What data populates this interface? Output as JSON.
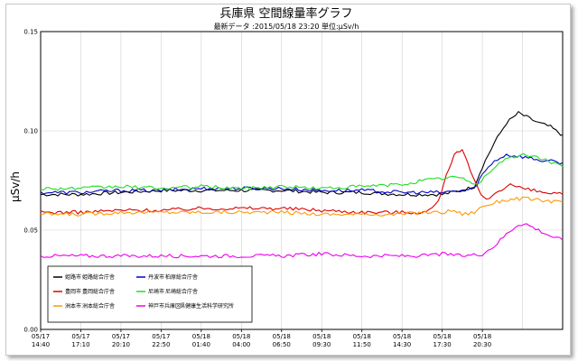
{
  "chart_data": {
    "type": "line",
    "title": "兵庫県 空間線量率グラフ",
    "subtitle": "最新データ :2015/05/18 23:20 単位:μSv/h",
    "ylabel": "μSv/h",
    "ylim": [
      0,
      0.15
    ],
    "yticks": [
      "0.00",
      "0.05",
      "0.10",
      "0.15"
    ],
    "xticks": [
      [
        "05/17",
        "14:40"
      ],
      [
        "05/17",
        "17:10"
      ],
      [
        "05/17",
        "20:10"
      ],
      [
        "05/17",
        "22:50"
      ],
      [
        "05/18",
        "01:40"
      ],
      [
        "05/18",
        "04:00"
      ],
      [
        "05/18",
        "06:50"
      ],
      [
        "05/18",
        "09:30"
      ],
      [
        "05/18",
        "11:50"
      ],
      [
        "05/18",
        "14:30"
      ],
      [
        "05/18",
        "17:30"
      ],
      [
        "05/18",
        "20:30"
      ]
    ],
    "x_count": 13,
    "grid": true,
    "legend_position": "bottom-left",
    "series": [
      {
        "name": "姫路市",
        "label": "姫路総合庁舎",
        "color": "#000000",
        "points": [
          [
            0,
            0.068
          ],
          [
            1,
            0.068
          ],
          [
            2,
            0.069
          ],
          [
            3,
            0.07
          ],
          [
            4,
            0.07
          ],
          [
            5,
            0.07
          ],
          [
            6,
            0.07
          ],
          [
            7,
            0.069
          ],
          [
            8,
            0.069
          ],
          [
            9,
            0.068
          ],
          [
            10,
            0.068
          ],
          [
            10.5,
            0.07
          ],
          [
            10.8,
            0.072
          ],
          [
            11,
            0.082
          ],
          [
            11.3,
            0.094
          ],
          [
            11.6,
            0.104
          ],
          [
            11.9,
            0.109
          ],
          [
            12.1,
            0.107
          ],
          [
            12.4,
            0.104
          ],
          [
            12.7,
            0.102
          ],
          [
            12.9,
            0.099
          ],
          [
            13,
            0.098
          ]
        ]
      },
      {
        "name": "丹波市",
        "label": "柏原総合庁舎",
        "color": "#0000cc",
        "points": [
          [
            0,
            0.069
          ],
          [
            1,
            0.069
          ],
          [
            2,
            0.07
          ],
          [
            3,
            0.07
          ],
          [
            4,
            0.071
          ],
          [
            5,
            0.071
          ],
          [
            6,
            0.071
          ],
          [
            7,
            0.07
          ],
          [
            8,
            0.07
          ],
          [
            9,
            0.069
          ],
          [
            10,
            0.069
          ],
          [
            10.5,
            0.07
          ],
          [
            10.8,
            0.071
          ],
          [
            11,
            0.078
          ],
          [
            11.3,
            0.085
          ],
          [
            11.6,
            0.088
          ],
          [
            12,
            0.087
          ],
          [
            12.5,
            0.085
          ],
          [
            13,
            0.084
          ]
        ]
      },
      {
        "name": "豊岡市",
        "label": "豊岡総合庁舎",
        "color": "#dd0000",
        "points": [
          [
            0,
            0.059
          ],
          [
            1,
            0.059
          ],
          [
            2,
            0.06
          ],
          [
            3,
            0.06
          ],
          [
            4,
            0.061
          ],
          [
            5,
            0.061
          ],
          [
            6,
            0.061
          ],
          [
            7,
            0.06
          ],
          [
            8,
            0.059
          ],
          [
            9,
            0.059
          ],
          [
            9.6,
            0.059
          ],
          [
            9.9,
            0.064
          ],
          [
            10.1,
            0.078
          ],
          [
            10.3,
            0.088
          ],
          [
            10.5,
            0.09
          ],
          [
            10.7,
            0.08
          ],
          [
            10.9,
            0.07
          ],
          [
            11.1,
            0.065
          ],
          [
            11.4,
            0.07
          ],
          [
            11.7,
            0.073
          ],
          [
            12,
            0.071
          ],
          [
            12.5,
            0.069
          ],
          [
            13,
            0.068
          ]
        ]
      },
      {
        "name": "尼崎市",
        "label": "尼崎総合庁舎",
        "color": "#22dd22",
        "points": [
          [
            0,
            0.071
          ],
          [
            1,
            0.071
          ],
          [
            2,
            0.072
          ],
          [
            3,
            0.071
          ],
          [
            4,
            0.072
          ],
          [
            5,
            0.071
          ],
          [
            6,
            0.072
          ],
          [
            7,
            0.071
          ],
          [
            8,
            0.072
          ],
          [
            9,
            0.073
          ],
          [
            9.5,
            0.075
          ],
          [
            10,
            0.076
          ],
          [
            10.3,
            0.077
          ],
          [
            10.6,
            0.075
          ],
          [
            10.9,
            0.073
          ],
          [
            11.2,
            0.08
          ],
          [
            11.5,
            0.085
          ],
          [
            11.8,
            0.087
          ],
          [
            12.1,
            0.088
          ],
          [
            12.5,
            0.086
          ],
          [
            13,
            0.082
          ]
        ]
      },
      {
        "name": "洲本市",
        "label": "洲本総合庁舎",
        "color": "#ff9900",
        "points": [
          [
            0,
            0.058
          ],
          [
            1,
            0.058
          ],
          [
            2,
            0.059
          ],
          [
            3,
            0.059
          ],
          [
            4,
            0.059
          ],
          [
            5,
            0.059
          ],
          [
            6,
            0.059
          ],
          [
            7,
            0.058
          ],
          [
            8,
            0.058
          ],
          [
            9,
            0.058
          ],
          [
            9.5,
            0.059
          ],
          [
            10,
            0.059
          ],
          [
            10.3,
            0.06
          ],
          [
            10.5,
            0.058
          ],
          [
            10.8,
            0.059
          ],
          [
            11,
            0.062
          ],
          [
            11.5,
            0.065
          ],
          [
            12,
            0.066
          ],
          [
            12.5,
            0.065
          ],
          [
            13,
            0.064
          ]
        ]
      },
      {
        "name": "神戸市兵庫区",
        "label": "県健康生活科学研究所",
        "color": "#ee00ee",
        "points": [
          [
            0,
            0.037
          ],
          [
            1,
            0.037
          ],
          [
            2,
            0.037
          ],
          [
            3,
            0.037
          ],
          [
            4,
            0.037
          ],
          [
            5,
            0.037
          ],
          [
            6,
            0.037
          ],
          [
            7,
            0.038
          ],
          [
            8,
            0.037
          ],
          [
            9,
            0.037
          ],
          [
            9.5,
            0.037
          ],
          [
            10,
            0.038
          ],
          [
            10.5,
            0.037
          ],
          [
            11,
            0.038
          ],
          [
            11.3,
            0.042
          ],
          [
            11.6,
            0.048
          ],
          [
            11.9,
            0.053
          ],
          [
            12.1,
            0.053
          ],
          [
            12.4,
            0.05
          ],
          [
            12.7,
            0.047
          ],
          [
            13,
            0.045
          ]
        ]
      }
    ]
  }
}
